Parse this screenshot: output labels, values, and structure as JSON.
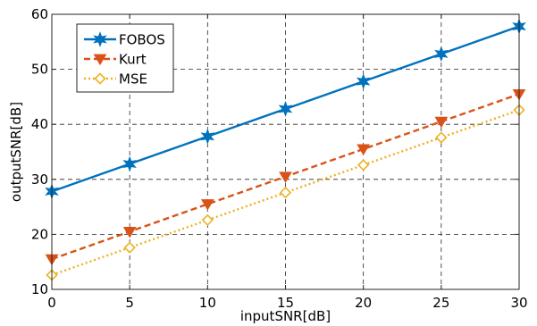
{
  "chart_data": {
    "type": "line",
    "title": "",
    "xlabel": "inputSNR[dB]",
    "ylabel": "outputSNR[dB]",
    "xlim": [
      0,
      30
    ],
    "ylim": [
      10,
      60
    ],
    "xticks": [
      0,
      5,
      10,
      15,
      20,
      25,
      30
    ],
    "yticks": [
      10,
      20,
      30,
      40,
      50,
      60
    ],
    "grid": true,
    "grid_style": "dashed",
    "legend_position": "top-left",
    "x": [
      0,
      5,
      10,
      15,
      20,
      25,
      30
    ],
    "series": [
      {
        "name": "FOBOS",
        "values": [
          27.8,
          32.8,
          37.8,
          42.8,
          47.8,
          52.8,
          57.8
        ],
        "color": "#0072BD",
        "line_style": "solid",
        "marker": "hexagram"
      },
      {
        "name": "Kurt",
        "values": [
          15.5,
          20.5,
          25.5,
          30.5,
          35.5,
          40.5,
          45.5
        ],
        "color": "#D95319",
        "line_style": "dashed",
        "marker": "triangle-down"
      },
      {
        "name": "MSE",
        "values": [
          12.6,
          17.6,
          22.6,
          27.6,
          32.6,
          37.6,
          42.6
        ],
        "color": "#EDB120",
        "line_style": "dotted",
        "marker": "diamond"
      }
    ]
  }
}
